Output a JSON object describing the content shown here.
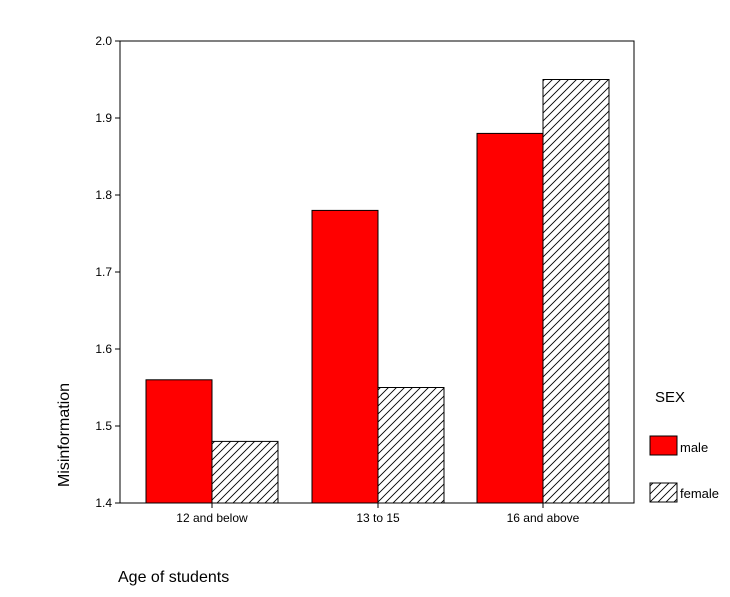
{
  "chart_data": {
    "type": "bar",
    "xlabel": "Age of students",
    "ylabel": "Misinformation",
    "categories": [
      "12 and below",
      "13 to 15",
      "16 and above"
    ],
    "series": [
      {
        "name": "male",
        "values": [
          1.56,
          1.78,
          1.88
        ],
        "color": "#ff0000",
        "fill": "solid"
      },
      {
        "name": "female",
        "values": [
          1.48,
          1.55,
          1.95
        ],
        "color": "#000000",
        "fill": "hatched"
      }
    ],
    "ylim": [
      1.4,
      2.0
    ],
    "yticks": [
      "1.4",
      "1.5",
      "1.6",
      "1.7",
      "1.8",
      "1.9",
      "2.0"
    ],
    "legend": {
      "title": "SEX",
      "position": "right"
    },
    "grid": false
  }
}
